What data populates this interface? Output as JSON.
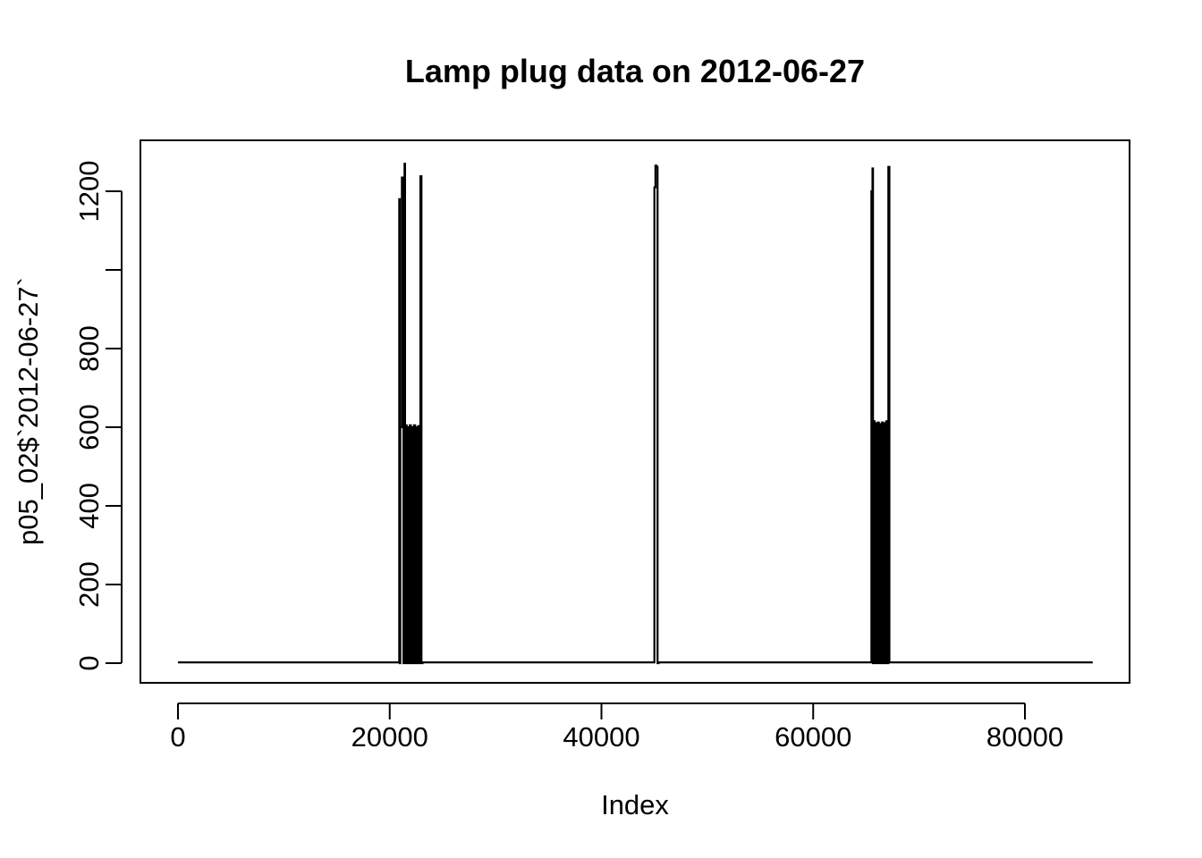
{
  "chart_data": {
    "type": "line",
    "title": "Lamp plug data on 2012-06-27",
    "xlabel": "Index",
    "ylabel": "p05_02$`2012-06-27`",
    "xlim": [
      0,
      86400
    ],
    "ylim": [
      0,
      1300
    ],
    "x_ticks": [
      0,
      20000,
      40000,
      60000,
      80000
    ],
    "x_tick_labels": [
      "0",
      "20000",
      "40000",
      "60000",
      "80000"
    ],
    "y_ticks": [
      0,
      200,
      400,
      600,
      800,
      1000,
      1200
    ],
    "y_tick_labels": [
      "0",
      "200",
      "400",
      "600",
      "800",
      "",
      "1200"
    ],
    "grid": false,
    "series": [
      {
        "x": [
          0,
          20900,
          20900,
          20950,
          20950,
          21000,
          21000,
          21150,
          21150,
          21300,
          21300,
          21400,
          21400,
          21450,
          21450,
          21500,
          21500,
          21600,
          21600,
          21700,
          21700,
          21800,
          21800,
          21900,
          21900,
          22000,
          22000,
          22100,
          22100,
          22200,
          22200,
          22300,
          22300,
          22400,
          22400,
          22500,
          22500,
          22600,
          22600,
          22700,
          22700,
          22800,
          22800,
          22900,
          22900,
          23000,
          23000,
          23100,
          23100,
          45000,
          45000,
          45100,
          45100,
          45200,
          45200,
          45300,
          45300,
          45400,
          45400,
          65500,
          65500,
          65600,
          65600,
          65650,
          65650,
          65700,
          65700,
          65800,
          65800,
          65900,
          65900,
          66000,
          66000,
          66100,
          66100,
          66200,
          66200,
          66300,
          66300,
          66400,
          66400,
          66500,
          66500,
          66600,
          66600,
          66700,
          66700,
          66800,
          66800,
          66900,
          66900,
          67000,
          67000,
          67100,
          67100,
          67200,
          67200,
          86400
        ],
        "y": [
          2,
          2,
          1180,
          1180,
          0,
          0,
          600,
          600,
          1235,
          1235,
          0,
          0,
          1270,
          1270,
          0,
          0,
          605,
          605,
          0,
          0,
          600,
          600,
          0,
          0,
          605,
          605,
          0,
          0,
          600,
          600,
          0,
          0,
          605,
          605,
          0,
          0,
          600,
          600,
          0,
          0,
          603,
          603,
          0,
          0,
          1238,
          1238,
          0,
          0,
          2,
          2,
          1210,
          1210,
          1265,
          1265,
          1262,
          1262,
          0,
          0,
          2,
          2,
          1200,
          1200,
          1258,
          1258,
          0,
          0,
          615,
          615,
          0,
          0,
          610,
          610,
          0,
          0,
          612,
          612,
          0,
          0,
          608,
          608,
          0,
          0,
          612,
          612,
          0,
          0,
          610,
          610,
          0,
          0,
          615,
          615,
          0,
          0,
          1262,
          1262,
          2,
          2
        ]
      }
    ]
  }
}
